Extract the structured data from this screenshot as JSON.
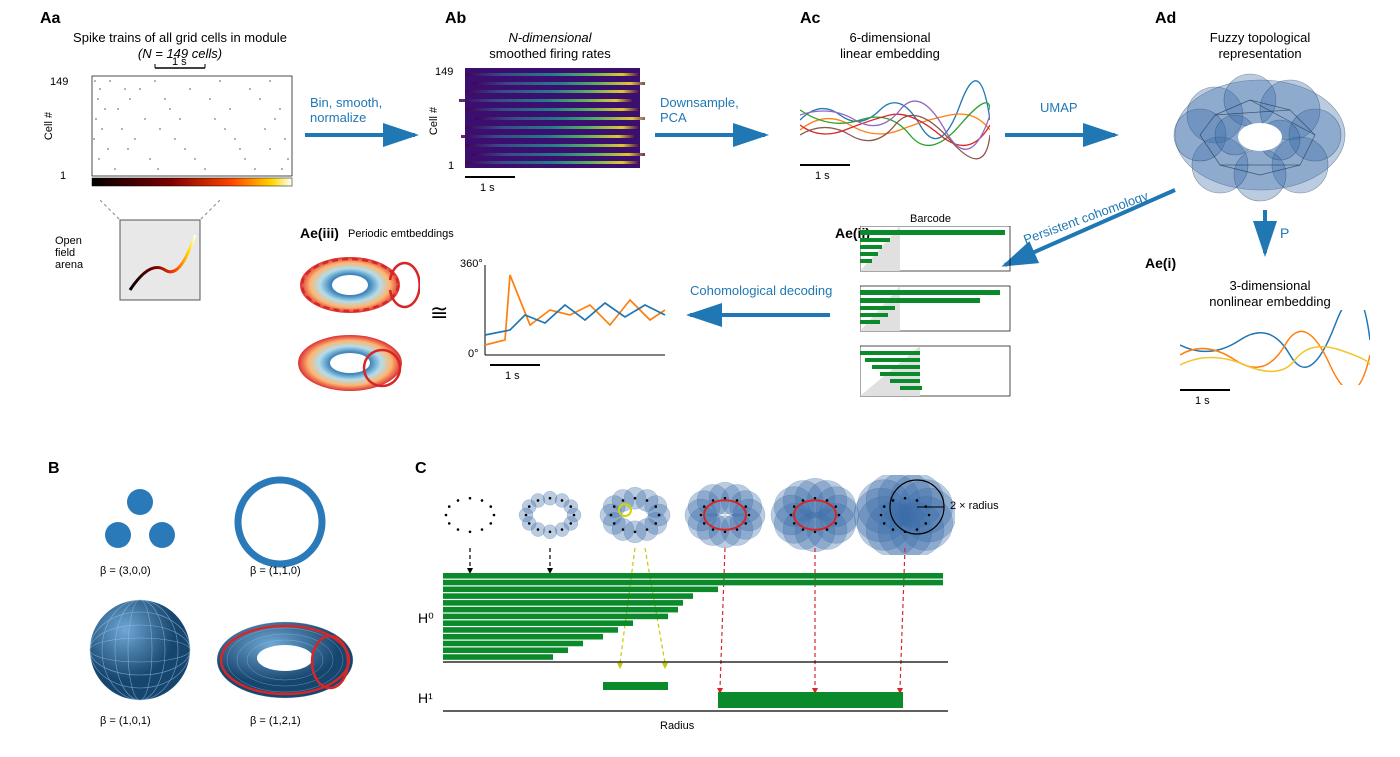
{
  "colors": {
    "arrow": "#1f77b4",
    "barcode": "#0a8a2a",
    "barcode_bg": "#e5e5e5",
    "heatmap_bg": "#3b0f70",
    "shape": "#2a7ab9",
    "torus_node": "#3d6ea8",
    "red": "#d62728",
    "orange": "#ff7f0e",
    "yellow": "#f4c430",
    "blue": "#1f77b4"
  },
  "panelA": {
    "Aa": {
      "label": "Aa",
      "title_line1": "Spike trains of all grid cells in module",
      "title_line2": "(N = 149 cells)",
      "y_axis": "Cell #",
      "y_top": "149",
      "y_bot": "1",
      "scale": "1 s",
      "arena": "Open\nfield\narena"
    },
    "Ab": {
      "label": "Ab",
      "title_line1": "N-dimensional",
      "title_line2": "smoothed firing rates",
      "y_axis": "Cell #",
      "y_top": "149",
      "y_bot": "1",
      "scale": "1 s"
    },
    "Ac": {
      "label": "Ac",
      "title_line1": "6-dimensional",
      "title_line2": "linear embedding",
      "scale": "1 s"
    },
    "Ad": {
      "label": "Ad",
      "title_line1": "Fuzzy topological",
      "title_line2": "representation"
    },
    "Ae_i": {
      "label": "Ae(i)",
      "title_line1": "3-dimensional",
      "title_line2": "nonlinear embedding",
      "scale": "1 s"
    },
    "Ae_ii": {
      "label": "Ae(ii)",
      "title": "Barcode"
    },
    "Ae_iii": {
      "label": "Ae(iii)",
      "title": "Periodic emtbeddings",
      "iso": "≅",
      "y_top": "360°",
      "y_bot": "0°",
      "scale": "1 s"
    },
    "arrows": {
      "a1": "Bin, smooth,\nnormalize",
      "a2": "Downsample,\nPCA",
      "a3": "UMAP",
      "a4": "P",
      "a5": "Persistent cohomology",
      "a6": "Cohomological decoding"
    }
  },
  "panelB": {
    "label": "B",
    "b1": "β = (3,0,0)",
    "b2": "β = (1,1,0)",
    "b3": "β = (1,0,1)",
    "b4": "β = (1,2,1)"
  },
  "panelC": {
    "label": "C",
    "H0": "H⁰",
    "H1": "H¹",
    "xaxis": "Radius",
    "ann": "2 × radius",
    "h0_bars": [
      1.0,
      1.0,
      0.55,
      0.5,
      0.48,
      0.47,
      0.45,
      0.38,
      0.35,
      0.32,
      0.28,
      0.25,
      0.22
    ],
    "h1_bars": [
      {
        "start": 0.32,
        "end": 0.45,
        "color": "#f4c430"
      },
      {
        "start": 0.55,
        "end": 0.92,
        "color": "#d62728"
      }
    ]
  }
}
